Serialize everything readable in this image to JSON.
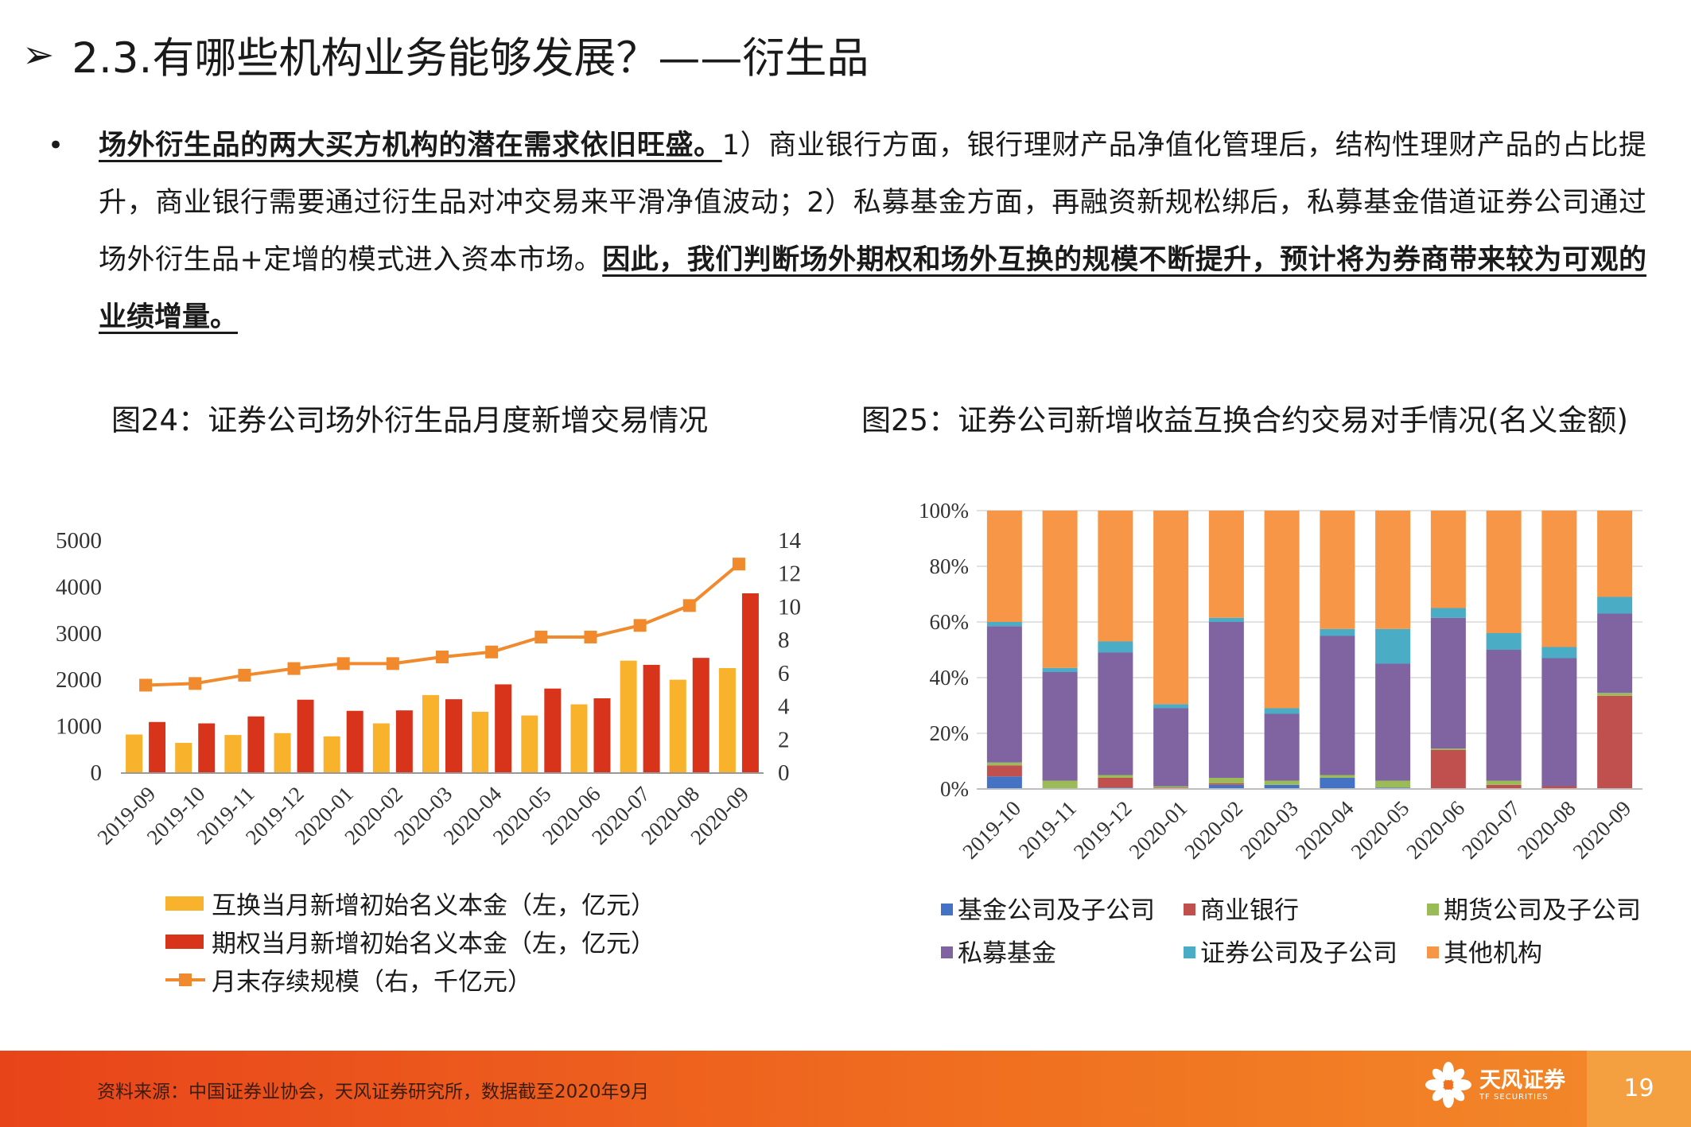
{
  "header": {
    "arrow": "➢",
    "title": "2.3.有哪些机构业务能够发展？——衍生品"
  },
  "bullet": {
    "dot": "•",
    "bold1": "场外衍生品的两大买方机构的潜在需求依旧旺盛。",
    "text1": "1）商业银行方面，银行理财产品净值化管理后，结构性理财产品的占比提升，商业银行需要通过衍生品对冲交易来平滑净值波动；2）私募基金方面，再融资新规松绑后，私募基金借道证券公司通过场外衍生品+定增的模式进入资本市场。",
    "bold2": "因此，我们判断场外期权和场外互换的规模不断提升，预计将为券商带来较为可观的业绩增量。"
  },
  "fig24_title": "图24：证券公司场外衍生品月度新增交易情况",
  "fig25_title": "图25：证券公司新增收益互换合约交易对手情况(名义金额)",
  "colors": {
    "swap": "#f8b22b",
    "option": "#d8341c",
    "line": "#f08a2c",
    "fund": "#4472c4",
    "bank": "#c0504d",
    "futures": "#9bbb59",
    "private": "#8064a2",
    "securities": "#4bacc6",
    "other": "#f79646"
  },
  "chart_data": [
    {
      "type": "bar",
      "categories": [
        "2019-09",
        "2019-10",
        "2019-11",
        "2019-12",
        "2020-01",
        "2020-02",
        "2020-03",
        "2020-04",
        "2020-05",
        "2020-06",
        "2020-07",
        "2020-08",
        "2020-09"
      ],
      "series": [
        {
          "name": "互换当月新增初始名义本金（左，亿元）",
          "type": "bar",
          "axis": "left",
          "values": [
            830,
            650,
            820,
            860,
            790,
            1070,
            1680,
            1320,
            1240,
            1480,
            2420,
            2010,
            2260
          ]
        },
        {
          "name": "期权当月新增初始名义本金（左，亿元）",
          "type": "bar",
          "axis": "left",
          "values": [
            1100,
            1070,
            1220,
            1580,
            1340,
            1350,
            1590,
            1910,
            1820,
            1610,
            2330,
            2480,
            3870
          ]
        },
        {
          "name": "月末存续规模（右，千亿元）",
          "type": "line",
          "axis": "right",
          "values": [
            5.3,
            5.4,
            5.9,
            6.3,
            6.6,
            6.6,
            7.0,
            7.3,
            8.2,
            8.2,
            8.9,
            10.1,
            12.6
          ]
        }
      ],
      "yticks_left": [
        "0",
        "1000",
        "2000",
        "3000",
        "4000",
        "5000"
      ],
      "yticks_right": [
        "0",
        "2",
        "4",
        "6",
        "8",
        "10",
        "12",
        "14"
      ],
      "ylim_left": [
        0,
        5000
      ],
      "ylim_right": [
        0,
        14
      ],
      "legend_position": "bottom",
      "grid": false
    },
    {
      "type": "bar",
      "stacked": true,
      "categories": [
        "2019-10",
        "2019-11",
        "2019-12",
        "2020-01",
        "2020-02",
        "2020-03",
        "2020-04",
        "2020-05",
        "2020-06",
        "2020-07",
        "2020-08",
        "2020-09"
      ],
      "series": [
        {
          "name": "基金公司及子公司",
          "values": [
            4.5,
            0,
            0.5,
            0,
            1.5,
            1.5,
            4,
            0.5,
            0,
            0,
            0,
            0
          ]
        },
        {
          "name": "商业银行",
          "values": [
            4,
            0,
            3.5,
            0.5,
            0.5,
            0,
            0,
            0,
            14,
            1.5,
            1,
            33.5
          ]
        },
        {
          "name": "期货公司及子公司",
          "values": [
            1,
            3,
            1,
            0.5,
            2,
            1.5,
            1,
            2.5,
            0.5,
            1.5,
            0,
            1
          ]
        },
        {
          "name": "私募基金",
          "values": [
            49,
            39,
            44,
            28,
            56,
            24,
            50,
            42,
            47,
            47,
            46,
            28.5
          ]
        },
        {
          "name": "证券公司及子公司",
          "values": [
            1.5,
            1.5,
            4,
            1.5,
            1.5,
            2,
            2.5,
            12.5,
            3.5,
            6,
            4,
            6
          ]
        },
        {
          "name": "其他机构",
          "values": [
            40,
            56.5,
            47,
            69.5,
            38.5,
            71,
            42.5,
            42.5,
            35,
            44,
            49,
            31
          ]
        }
      ],
      "yticks": [
        "0%",
        "20%",
        "40%",
        "60%",
        "80%",
        "100%"
      ],
      "ylim": [
        0,
        100
      ],
      "legend_position": "bottom",
      "grid": "horizontal"
    }
  ],
  "footer": {
    "source": "资料来源：中国证券业协会，天风证券研究所，数据截至2020年9月",
    "logo_cn": "天风证券",
    "logo_en": "TF SECURITIES",
    "page": "19"
  }
}
